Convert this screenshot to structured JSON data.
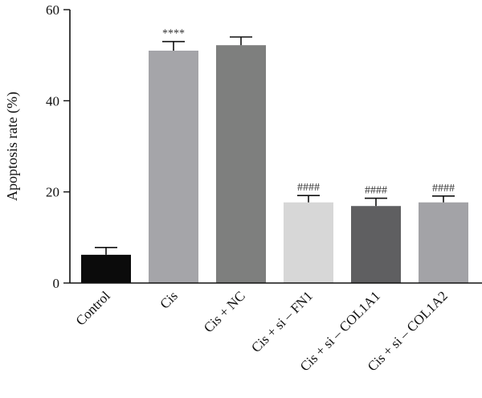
{
  "chart_data": {
    "type": "bar",
    "title": "",
    "xlabel": "",
    "ylabel": "Apoptosis rate (%)",
    "ylim": [
      0,
      60
    ],
    "yticks": [
      0,
      20,
      40,
      60
    ],
    "categories": [
      "Control",
      "Cis",
      "Cis + NC",
      "Cis + si – FN1",
      "Cis + si – COL1A1",
      "Cis + si – COL1A2"
    ],
    "values": [
      6.2,
      51.0,
      52.2,
      17.7,
      16.9,
      17.7
    ],
    "errors": [
      1.6,
      2.0,
      1.8,
      1.5,
      1.7,
      1.4
    ],
    "annotations": [
      "",
      "****",
      "",
      "####",
      "####",
      "####"
    ],
    "colors": [
      "#0b0b0b",
      "#a5a5a9",
      "#7e7f7e",
      "#d7d7d7",
      "#5f5f61",
      "#a3a3a7"
    ],
    "grid": false,
    "legend": "none"
  }
}
